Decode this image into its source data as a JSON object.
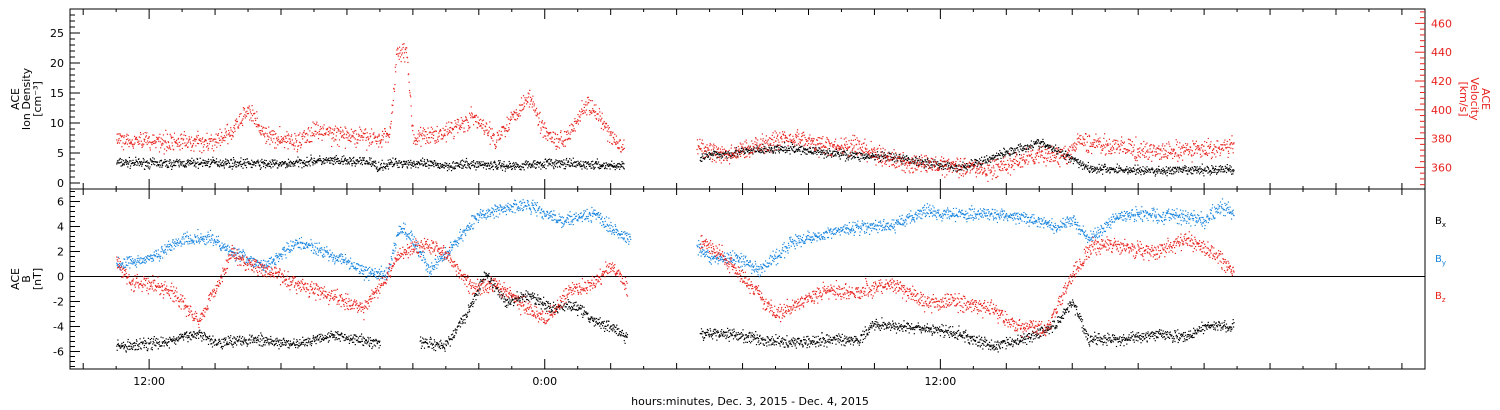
{
  "chart_data": [
    {
      "type": "scatter",
      "panel": "plasma",
      "title": "",
      "ylabel_left": [
        "ACE",
        "Ion Density",
        "[cm⁻³]"
      ],
      "ylabel_right": [
        "ACE",
        "Velocity",
        "[km/s]"
      ],
      "ylim_left": [
        -1,
        29
      ],
      "ylim_right": [
        345,
        470
      ],
      "yticks_left": [
        0,
        5,
        10,
        15,
        20,
        25
      ],
      "yticks_right": [
        360,
        380,
        400,
        420,
        440,
        460
      ],
      "grid": false,
      "series": [
        {
          "name": "Ion Density",
          "axis": "left",
          "color": "#000000",
          "knots": [
            [
              -1.0,
              3.5
            ],
            [
              0.5,
              3.3
            ],
            [
              2,
              3.5
            ],
            [
              4,
              3.2
            ],
            [
              5,
              3.8
            ],
            [
              6.7,
              3.6
            ],
            [
              6.9,
              2.8
            ],
            [
              7.5,
              3.5
            ],
            [
              9,
              3.0
            ],
            [
              10,
              3.2
            ],
            [
              11,
              2.9
            ],
            [
              12,
              3.4
            ],
            [
              13,
              3.2
            ],
            [
              14.4,
              2.9
            ],
            [
              15.2,
              null
            ],
            [
              16.5,
              null
            ],
            [
              16.7,
              4.5
            ],
            [
              17.5,
              5.0
            ],
            [
              18.5,
              5.6
            ],
            [
              19.5,
              5.8
            ],
            [
              20.5,
              5.2
            ],
            [
              21.5,
              4.6
            ],
            [
              22.5,
              4.3
            ],
            [
              23.5,
              3.6
            ],
            [
              24.5,
              2.6
            ],
            [
              25,
              3.2
            ],
            [
              26,
              5.2
            ],
            [
              27,
              6.8
            ],
            [
              28,
              4.2
            ],
            [
              28.5,
              2.5
            ],
            [
              29.5,
              2.3
            ],
            [
              30.5,
              2.1
            ],
            [
              31.5,
              2.2
            ],
            [
              32.5,
              2.3
            ],
            [
              32.9,
              2.4
            ]
          ],
          "noise": 0.6
        },
        {
          "name": "Velocity",
          "axis": "right",
          "color": "#e8231f",
          "knots": [
            [
              -1.0,
              380
            ],
            [
              1,
              378
            ],
            [
              2,
              378
            ],
            [
              2.5,
              385
            ],
            [
              3,
              400
            ],
            [
              3.2,
              395
            ],
            [
              3.5,
              382
            ],
            [
              4.5,
              378
            ],
            [
              5,
              386
            ],
            [
              6,
              382
            ],
            [
              7,
              380
            ],
            [
              7.3,
              385
            ],
            [
              7.5,
              440
            ],
            [
              7.8,
              442
            ],
            [
              8,
              380
            ],
            [
              9,
              385
            ],
            [
              9.8,
              395
            ],
            [
              10.5,
              380
            ],
            [
              11.5,
              410
            ],
            [
              12,
              385
            ],
            [
              12.5,
              378
            ],
            [
              13.3,
              405
            ],
            [
              14,
              382
            ],
            [
              14.4,
              372
            ],
            [
              15.2,
              null
            ],
            [
              16.5,
              null
            ],
            [
              16.6,
              375
            ],
            [
              17.5,
              368
            ],
            [
              18.5,
              377
            ],
            [
              19.5,
              382
            ],
            [
              20.5,
              375
            ],
            [
              21.5,
              375
            ],
            [
              22.5,
              365
            ],
            [
              23.5,
              362
            ],
            [
              24.5,
              362
            ],
            [
              25.5,
              358
            ],
            [
              26,
              362
            ],
            [
              27,
              369
            ],
            [
              27.8,
              368
            ],
            [
              28.2,
              378
            ],
            [
              29,
              376
            ],
            [
              30,
              372
            ],
            [
              31,
              371
            ],
            [
              32,
              373
            ],
            [
              32.9,
              375
            ]
          ],
          "noise": 5
        }
      ]
    },
    {
      "type": "scatter",
      "panel": "magnetic",
      "title": "",
      "ylabel_left": [
        "ACE",
        "B",
        "[nT]"
      ],
      "ylim": [
        -7.4,
        7.0
      ],
      "yticks": [
        -6,
        -4,
        -2,
        0,
        2,
        4,
        6
      ],
      "zero_line": true,
      "grid": false,
      "legend": [
        "Bx",
        "By",
        "Bz"
      ],
      "legend_placement": "right",
      "series": [
        {
          "name": "Bx",
          "color": "#000000",
          "knots": [
            [
              -1.0,
              -5.6
            ],
            [
              0.5,
              -5.2
            ],
            [
              1.5,
              -4.5
            ],
            [
              2,
              -5.2
            ],
            [
              3,
              -5.0
            ],
            [
              4.5,
              -5.4
            ],
            [
              5.5,
              -4.6
            ],
            [
              6.8,
              -5.2
            ],
            [
              7.0,
              -5.4
            ],
            [
              7.5,
              null
            ],
            [
              8,
              null
            ],
            [
              8.2,
              -5.2
            ],
            [
              9,
              -5.5
            ],
            [
              9.6,
              -3.0
            ],
            [
              10.2,
              0.2
            ],
            [
              10.8,
              -2.0
            ],
            [
              11.5,
              -1.5
            ],
            [
              12.2,
              -2.5
            ],
            [
              12.8,
              -2.2
            ],
            [
              13.5,
              -3.5
            ],
            [
              14,
              -4.0
            ],
            [
              14.5,
              -4.8
            ],
            [
              15.2,
              null
            ],
            [
              16.5,
              null
            ],
            [
              16.7,
              -4.6
            ],
            [
              17.5,
              -4.5
            ],
            [
              18.5,
              -5.0
            ],
            [
              19.5,
              -5.2
            ],
            [
              20.5,
              -5.0
            ],
            [
              21.5,
              -5.0
            ],
            [
              22,
              -3.8
            ],
            [
              23,
              -4.0
            ],
            [
              24.5,
              -4.5
            ],
            [
              25.5,
              -5.5
            ],
            [
              26.5,
              -5.0
            ],
            [
              27.5,
              -3.8
            ],
            [
              28,
              -2.0
            ],
            [
              28.5,
              -5.0
            ],
            [
              29.5,
              -5.0
            ],
            [
              30.5,
              -4.6
            ],
            [
              31.5,
              -4.8
            ],
            [
              32,
              -4.0
            ],
            [
              32.9,
              -3.9
            ]
          ],
          "noise": 0.35
        },
        {
          "name": "By",
          "color": "#1a86de",
          "knots": [
            [
              -1.0,
              1.0
            ],
            [
              0,
              1.5
            ],
            [
              1,
              3.0
            ],
            [
              1.8,
              3.2
            ],
            [
              2.5,
              2.0
            ],
            [
              3.5,
              0.8
            ],
            [
              4.5,
              2.8
            ],
            [
              5.5,
              1.8
            ],
            [
              6.5,
              0.5
            ],
            [
              7.2,
              0.2
            ],
            [
              7.6,
              4.0
            ],
            [
              8.0,
              3.0
            ],
            [
              8.5,
              0.5
            ],
            [
              9.2,
              2.5
            ],
            [
              10,
              5.0
            ],
            [
              10.8,
              5.5
            ],
            [
              11.5,
              5.8
            ],
            [
              12.5,
              4.5
            ],
            [
              13.5,
              5.0
            ],
            [
              14.2,
              3.5
            ],
            [
              14.6,
              3.0
            ],
            [
              15.2,
              null
            ],
            [
              16.5,
              null
            ],
            [
              16.6,
              2.5
            ],
            [
              17,
              1.5
            ],
            [
              17.8,
              1.5
            ],
            [
              18.5,
              0.5
            ],
            [
              19.5,
              2.8
            ],
            [
              20.5,
              3.5
            ],
            [
              21.5,
              4.0
            ],
            [
              22.5,
              4.0
            ],
            [
              23.5,
              5.3
            ],
            [
              24.5,
              5.0
            ],
            [
              25.5,
              5.0
            ],
            [
              26.5,
              4.8
            ],
            [
              27.5,
              4.0
            ],
            [
              28,
              4.5
            ],
            [
              28.5,
              3.0
            ],
            [
              29.5,
              5.0
            ],
            [
              30.5,
              5.0
            ],
            [
              31.5,
              4.8
            ],
            [
              32,
              4.5
            ],
            [
              32.5,
              5.8
            ],
            [
              32.9,
              5.0
            ]
          ],
          "noise": 0.4
        },
        {
          "name": "Bz",
          "color": "#e8231f",
          "knots": [
            [
              -1.0,
              1.2
            ],
            [
              -0.5,
              -0.5
            ],
            [
              0.5,
              -0.8
            ],
            [
              1,
              -2.0
            ],
            [
              1.5,
              -3.5
            ],
            [
              2,
              -1.0
            ],
            [
              2.5,
              2.0
            ],
            [
              3,
              1.0
            ],
            [
              3.5,
              0.5
            ],
            [
              4.5,
              -0.5
            ],
            [
              5.5,
              -1.5
            ],
            [
              6.5,
              -2.5
            ],
            [
              7.2,
              0
            ],
            [
              7.6,
              2.0
            ],
            [
              8.3,
              2.5
            ],
            [
              9,
              2.0
            ],
            [
              9.8,
              -1.0
            ],
            [
              10.5,
              -0.5
            ],
            [
              11.2,
              -2.0
            ],
            [
              12,
              -3.5
            ],
            [
              12.8,
              -1.0
            ],
            [
              13.5,
              -0.5
            ],
            [
              14,
              1.0
            ],
            [
              14.5,
              -1.0
            ],
            [
              15.2,
              null
            ],
            [
              16.5,
              null
            ],
            [
              16.7,
              3.0
            ],
            [
              17.3,
              2.0
            ],
            [
              18.3,
              -1.0
            ],
            [
              19,
              -3.0
            ],
            [
              19.8,
              -2.0
            ],
            [
              20.5,
              -1.0
            ],
            [
              21.5,
              -1.2
            ],
            [
              22.5,
              -0.5
            ],
            [
              23.5,
              -2.0
            ],
            [
              24.5,
              -2.0
            ],
            [
              25.5,
              -2.5
            ],
            [
              26.3,
              -4.0
            ],
            [
              27.2,
              -4.2
            ],
            [
              28,
              0.2
            ],
            [
              28.6,
              2.5
            ],
            [
              29.5,
              2.5
            ],
            [
              30.5,
              2.0
            ],
            [
              31.5,
              3.0
            ],
            [
              32.2,
              2.0
            ],
            [
              32.9,
              0.5
            ]
          ],
          "noise": 0.5
        }
      ]
    }
  ],
  "x_axis": {
    "label": "hours:minutes, Dec.  3, 2015 - Dec.  4, 2015",
    "xlim": [
      -2.4,
      38.7
    ],
    "tick_labels": [
      {
        "x": 0,
        "label": "12:00"
      },
      {
        "x": 12,
        "label": "0:00"
      },
      {
        "x": 24,
        "label": "12:00"
      }
    ],
    "major_tick_step": 2
  }
}
